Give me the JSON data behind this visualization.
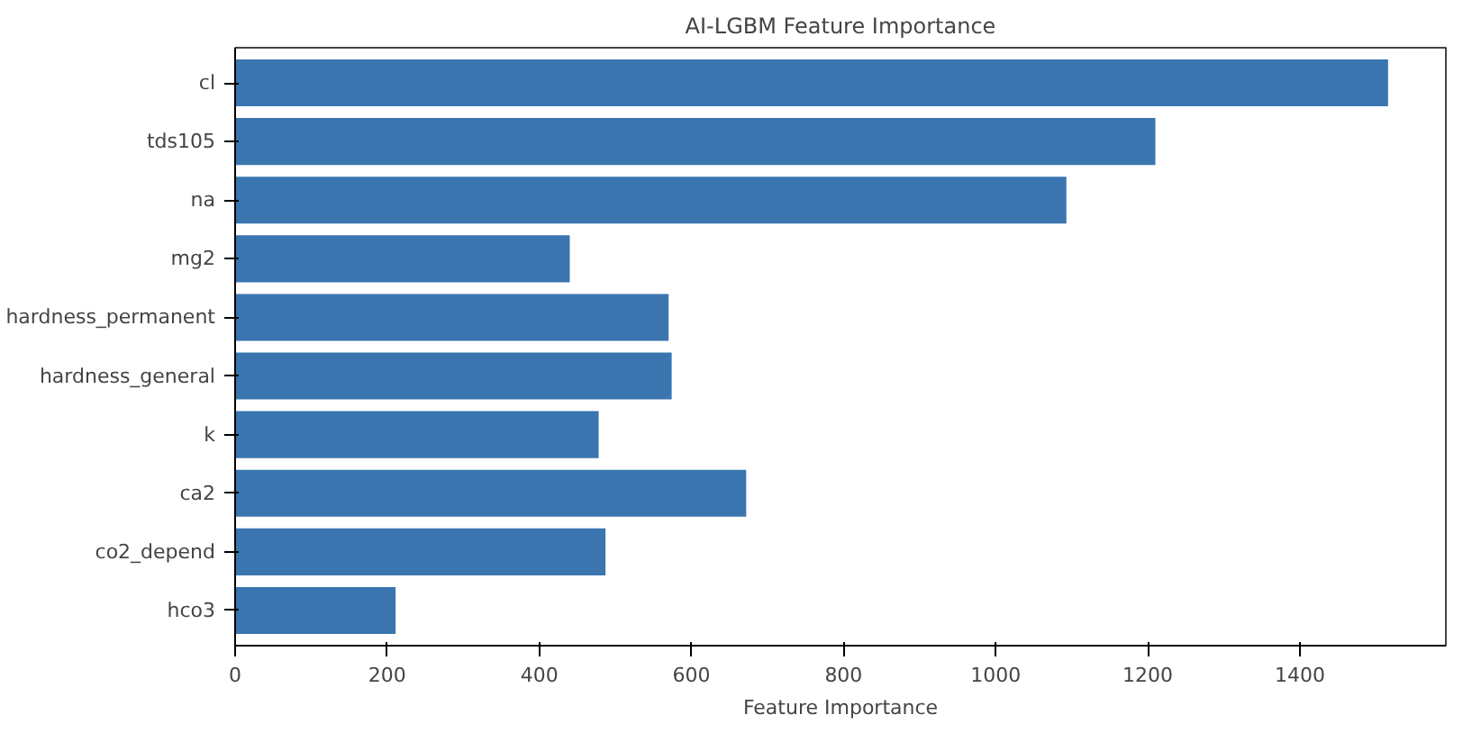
{
  "chart_data": {
    "type": "bar",
    "orientation": "horizontal",
    "title": "AI-LGBM Feature Importance",
    "xlabel": "Feature Importance",
    "categories": [
      "cl",
      "tds105",
      "na",
      "mg2",
      "hardness_permanent",
      "hardness_general",
      "k",
      "ca2",
      "co2_depend",
      "hco3"
    ],
    "values": [
      1516,
      1210,
      1093,
      440,
      570,
      574,
      478,
      672,
      487,
      211
    ],
    "color": "#3a75b0",
    "xlim": [
      0,
      1592
    ],
    "xticks": [
      0,
      200,
      400,
      600,
      800,
      1000,
      1200,
      1400
    ],
    "grid": false
  }
}
